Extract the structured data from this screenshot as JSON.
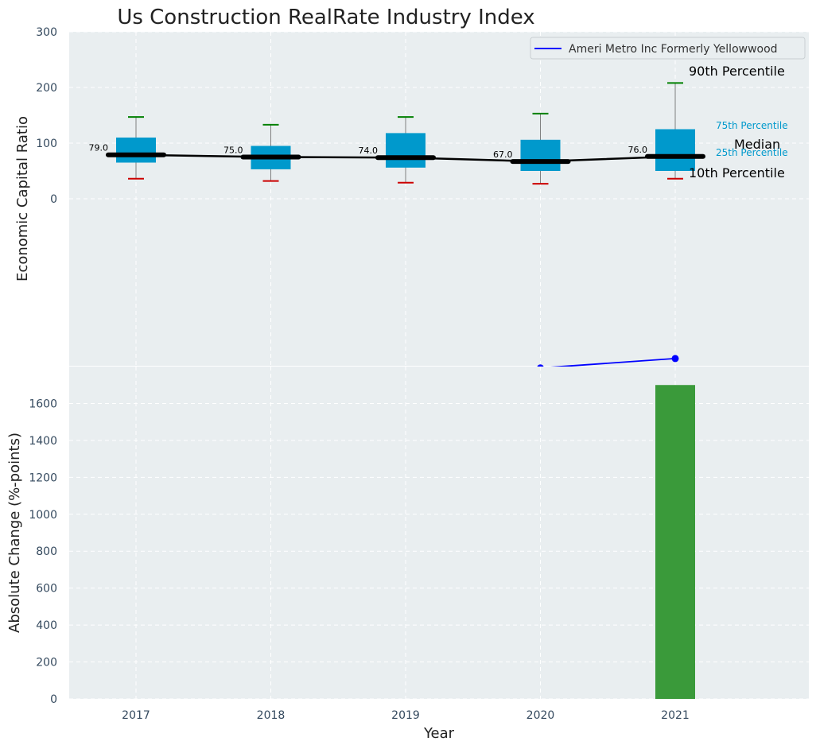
{
  "chart_data": [
    {
      "type": "box",
      "title": "Us Construction RealRate Industry Index",
      "xlabel": "",
      "ylabel": "Economic Capital Ratio",
      "ylim": [
        -300,
        300
      ],
      "yticks": [
        0,
        100,
        200,
        300
      ],
      "grid": true,
      "categories": [
        "2017",
        "2018",
        "2019",
        "2020",
        "2021"
      ],
      "boxes": [
        {
          "year": "2017",
          "p10": 36,
          "p25": 65,
          "median": 79,
          "p75": 110,
          "p90": 147,
          "label": "79.0"
        },
        {
          "year": "2018",
          "p10": 32,
          "p25": 53,
          "median": 75,
          "p75": 95,
          "p90": 133,
          "label": "75.0"
        },
        {
          "year": "2019",
          "p10": 29,
          "p25": 56,
          "median": 74,
          "p75": 118,
          "p90": 147,
          "label": "74.0"
        },
        {
          "year": "2020",
          "p10": 27,
          "p25": 50,
          "median": 67,
          "p75": 106,
          "p90": 153,
          "label": "67.0"
        },
        {
          "year": "2021",
          "p10": 36,
          "p25": 50,
          "median": 76,
          "p75": 125,
          "p90": 208,
          "label": "76.0"
        }
      ],
      "company_series": {
        "name": "Ameri Metro Inc Formerly Yellowwood",
        "x": [
          "2020",
          "2021"
        ],
        "values": [
          -304,
          -287
        ],
        "color": "#0000ff"
      },
      "legend_position": "top-right",
      "annotations": {
        "p90": "90th Percentile",
        "p75": "75th Percentile",
        "median": "Median",
        "p25": "25th Percentile",
        "p10": "10th Percentile"
      },
      "colors": {
        "box": "#0099cc",
        "median": "#000000",
        "p90_cap": "#008000",
        "p10_cap": "#cc0000",
        "whisker": "#808080",
        "panel_bg": "#e9eef0"
      }
    },
    {
      "type": "bar",
      "xlabel": "Year",
      "ylabel": "Absolute Change (%-points)",
      "categories": [
        "2017",
        "2018",
        "2019",
        "2020",
        "2021"
      ],
      "values": [
        null,
        null,
        null,
        null,
        1700
      ],
      "ylim": [
        0,
        1800
      ],
      "yticks": [
        0,
        200,
        400,
        600,
        800,
        1000,
        1200,
        1400,
        1600
      ],
      "grid": true,
      "colors": {
        "bar": "#3a9a3a",
        "panel_bg": "#e9eef0"
      }
    }
  ]
}
